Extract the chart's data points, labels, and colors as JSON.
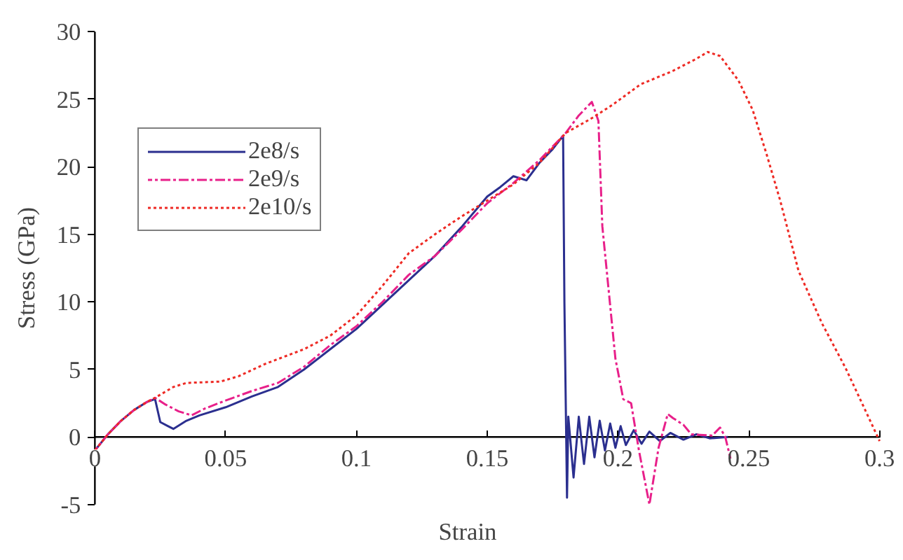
{
  "chart_data": {
    "type": "line",
    "xlabel": "Strain",
    "ylabel": "Stress (GPa)",
    "xlim": [
      0,
      0.3
    ],
    "ylim": [
      -5,
      30
    ],
    "xticks": [
      0,
      0.05,
      0.1,
      0.15,
      0.2,
      0.25,
      0.3
    ],
    "yticks": [
      -5,
      0,
      5,
      10,
      15,
      20,
      25,
      30
    ],
    "grid": false,
    "legend": "top left",
    "marker": "none",
    "series": [
      {
        "name": "2e8/s",
        "color": "#2b2f8f",
        "line_style": "solid",
        "x": [
          0,
          0.005,
          0.01,
          0.015,
          0.02,
          0.023,
          0.025,
          0.028,
          0.03,
          0.035,
          0.04,
          0.05,
          0.06,
          0.07,
          0.08,
          0.09,
          0.1,
          0.11,
          0.12,
          0.13,
          0.14,
          0.15,
          0.155,
          0.16,
          0.165,
          0.17,
          0.175,
          0.179,
          0.1795,
          0.1805,
          0.181,
          0.183,
          0.185,
          0.187,
          0.189,
          0.191,
          0.193,
          0.195,
          0.197,
          0.199,
          0.201,
          0.203,
          0.206,
          0.209,
          0.212,
          0.216,
          0.22,
          0.225,
          0.23,
          0.235,
          0.242
        ],
        "values": [
          -1,
          0.2,
          1.2,
          2,
          2.6,
          2.8,
          1.1,
          0.8,
          0.6,
          1.2,
          1.6,
          2.2,
          3,
          3.7,
          5,
          6.5,
          8,
          9.8,
          11.6,
          13.4,
          15.5,
          17.8,
          18.5,
          19.3,
          19,
          20.3,
          21.3,
          22.3,
          10,
          -4.5,
          1.5,
          -3,
          1.5,
          -2,
          1.5,
          -1.5,
          1.2,
          -1,
          1,
          -0.8,
          0.8,
          -0.6,
          0.5,
          -0.5,
          0.4,
          -0.3,
          0.3,
          -0.2,
          0.2,
          -0.1,
          0
        ]
      },
      {
        "name": "2e9/s",
        "color": "#e8208a",
        "line_style": "dashdot",
        "x": [
          0,
          0.005,
          0.01,
          0.015,
          0.02,
          0.023,
          0.027,
          0.032,
          0.037,
          0.042,
          0.05,
          0.06,
          0.07,
          0.08,
          0.09,
          0.1,
          0.11,
          0.12,
          0.13,
          0.14,
          0.15,
          0.16,
          0.17,
          0.18,
          0.185,
          0.19,
          0.1925,
          0.194,
          0.199,
          0.202,
          0.205,
          0.208,
          0.212,
          0.2155,
          0.219,
          0.221,
          0.225,
          0.228,
          0.236,
          0.239,
          0.241,
          0.243
        ],
        "values": [
          -1,
          0.2,
          1.2,
          2,
          2.6,
          2.9,
          2.4,
          1.9,
          1.6,
          2.1,
          2.7,
          3.4,
          4,
          5.2,
          6.8,
          8.2,
          10,
          12,
          13.4,
          15.3,
          17.3,
          18.8,
          20.5,
          22.5,
          23.8,
          24.8,
          23.4,
          15.6,
          5.8,
          2.8,
          2.5,
          -1,
          -5,
          -0.8,
          1.7,
          1.4,
          0.9,
          0.2,
          0.1,
          0.7,
          0,
          -1.6
        ]
      },
      {
        "name": "2e10/s",
        "color": "#ee2a24",
        "line_style": "dotted",
        "x": [
          0,
          0.005,
          0.01,
          0.015,
          0.02,
          0.023,
          0.03,
          0.035,
          0.048,
          0.055,
          0.065,
          0.08,
          0.09,
          0.1,
          0.11,
          0.12,
          0.13,
          0.14,
          0.15,
          0.16,
          0.17,
          0.18,
          0.19,
          0.198,
          0.2086,
          0.221,
          0.23,
          0.2343,
          0.239,
          0.246,
          0.2515,
          0.257,
          0.262,
          0.269,
          0.278,
          0.287,
          0.294,
          0.3
        ],
        "values": [
          -1,
          0.2,
          1.2,
          2,
          2.6,
          2.9,
          3.7,
          4,
          4.1,
          4.5,
          5.4,
          6.5,
          7.5,
          9,
          11.2,
          13.6,
          15,
          16.3,
          17.5,
          18.7,
          20.3,
          22.5,
          23.6,
          24.6,
          26.1,
          27.1,
          28,
          28.5,
          28.2,
          26.4,
          24.2,
          20.8,
          17.5,
          12.3,
          8.4,
          5.1,
          2.2,
          -0.3
        ]
      }
    ]
  }
}
